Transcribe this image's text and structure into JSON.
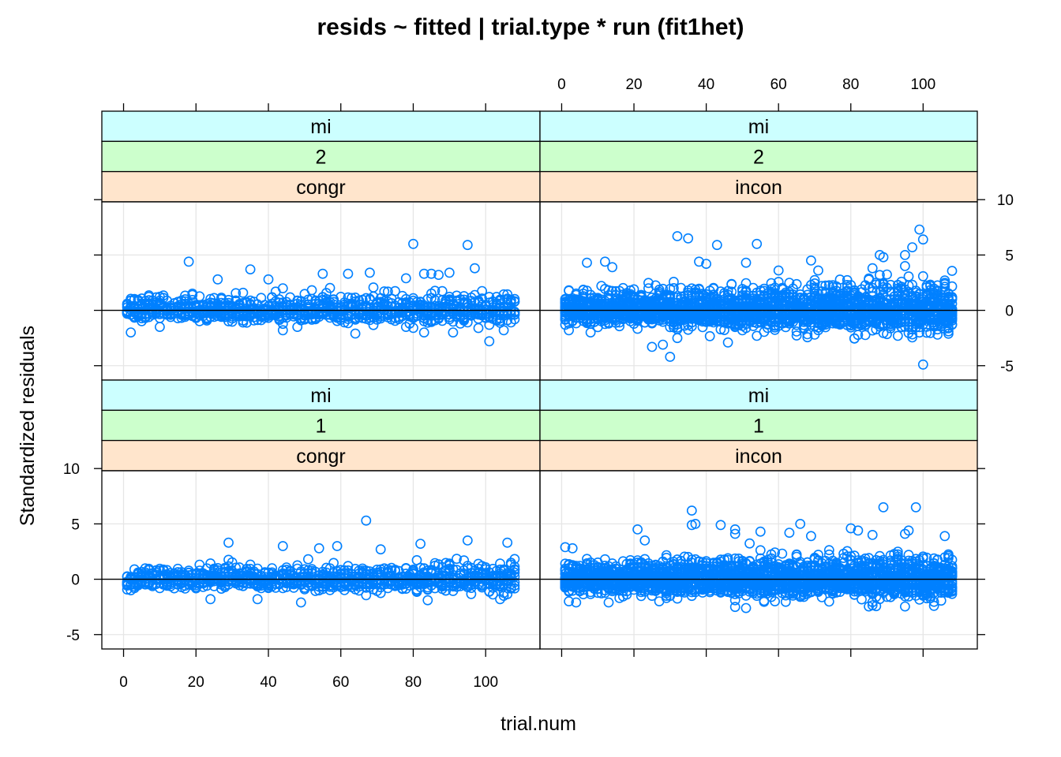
{
  "chart_data": {
    "type": "scatter",
    "title": "resids ~ fitted | trial.type * run (fit1het)",
    "xlabel": "trial.num",
    "ylabel": "Standardized residuals",
    "xlim": [
      -6,
      115
    ],
    "ylim": [
      -6.3,
      9.8
    ],
    "x_ticks": [
      0,
      20,
      40,
      60,
      80,
      100
    ],
    "y_ticks": [
      -5,
      0,
      5,
      10
    ],
    "grid": true,
    "reference_line_y": 0,
    "colors": {
      "points": "#0080ff",
      "strip_level1": "#ccffff",
      "strip_level2": "#ccffcc",
      "strip_level3": "#ffe5cc",
      "grid": "#e6e6e6"
    },
    "panels": [
      {
        "id": "mi-2-congr",
        "strips": [
          "mi",
          "2",
          "congr"
        ],
        "row": "top",
        "col": "left",
        "noise_sd": 0.55,
        "spread_growth": 0.5,
        "points_per_trial": 9,
        "seed": 11,
        "highlights": [
          [
            18,
            4.4
          ],
          [
            80,
            6
          ],
          [
            95,
            5.9
          ],
          [
            97,
            3.8
          ],
          [
            35,
            3.7
          ],
          [
            26,
            2.8
          ],
          [
            55,
            3.3
          ],
          [
            62,
            3.3
          ],
          [
            68,
            3.4
          ],
          [
            83,
            3.3
          ],
          [
            85,
            3.3
          ],
          [
            87,
            3.2
          ],
          [
            90,
            3.4
          ],
          [
            78,
            2.9
          ],
          [
            40,
            2.8
          ],
          [
            2,
            -2.0
          ],
          [
            10,
            -1.5
          ],
          [
            44,
            -1.8
          ],
          [
            64,
            -2.1
          ],
          [
            83,
            -2.0
          ],
          [
            91,
            -2.0
          ],
          [
            98,
            -1.6
          ],
          [
            105,
            -1.8
          ],
          [
            48,
            -1.5
          ],
          [
            78,
            -1.5
          ]
        ]
      },
      {
        "id": "mi-2-incon",
        "strips": [
          "mi",
          "2",
          "incon"
        ],
        "row": "top",
        "col": "right",
        "noise_sd": 0.7,
        "spread_growth": 0.8,
        "points_per_trial": 22,
        "seed": 23,
        "highlights": [
          [
            32,
            6.7
          ],
          [
            35,
            6.5
          ],
          [
            43,
            5.9
          ],
          [
            54,
            6.0
          ],
          [
            99,
            7.3
          ],
          [
            100,
            6.4
          ],
          [
            97,
            5.7
          ],
          [
            95,
            5.0
          ],
          [
            88,
            5.0
          ],
          [
            89,
            4.8
          ],
          [
            12,
            4.4
          ],
          [
            7,
            4.3
          ],
          [
            14,
            3.9
          ],
          [
            38,
            4.4
          ],
          [
            40,
            4.2
          ],
          [
            69,
            4.5
          ],
          [
            51,
            4.3
          ],
          [
            86,
            3.8
          ],
          [
            60,
            3.6
          ],
          [
            25,
            -3.3
          ],
          [
            28,
            -3.1
          ],
          [
            30,
            -4.2
          ],
          [
            32,
            -2.5
          ],
          [
            46,
            -2.9
          ],
          [
            100,
            -4.9
          ],
          [
            54,
            -2.3
          ],
          [
            93,
            -2.3
          ],
          [
            104,
            -2.2
          ],
          [
            70,
            -2.2
          ],
          [
            2,
            -1.8
          ],
          [
            8,
            -2.0
          ]
        ]
      },
      {
        "id": "mi-1-congr",
        "strips": [
          "mi",
          "1",
          "congr"
        ],
        "row": "bottom",
        "col": "left",
        "noise_sd": 0.5,
        "spread_growth": 0.5,
        "points_per_trial": 9,
        "seed": 37,
        "highlights": [
          [
            29,
            3.3
          ],
          [
            67,
            5.3
          ],
          [
            44,
            3.0
          ],
          [
            54,
            2.8
          ],
          [
            59,
            3.0
          ],
          [
            82,
            3.2
          ],
          [
            95,
            3.5
          ],
          [
            106,
            3.3
          ],
          [
            49,
            -2.1
          ],
          [
            37,
            -1.8
          ],
          [
            84,
            -1.9
          ],
          [
            104,
            -1.8
          ],
          [
            105,
            -1.5
          ],
          [
            2,
            -1.0
          ],
          [
            24,
            -1.8
          ],
          [
            71,
            2.7
          ]
        ]
      },
      {
        "id": "mi-1-incon",
        "strips": [
          "mi",
          "1",
          "incon"
        ],
        "row": "bottom",
        "col": "right",
        "noise_sd": 0.7,
        "spread_growth": 0.5,
        "points_per_trial": 24,
        "seed": 53,
        "highlights": [
          [
            1,
            2.9
          ],
          [
            3,
            2.8
          ],
          [
            21,
            4.5
          ],
          [
            23,
            3.5
          ],
          [
            36,
            6.2
          ],
          [
            36,
            4.9
          ],
          [
            37,
            5.0
          ],
          [
            44,
            4.9
          ],
          [
            48,
            4.5
          ],
          [
            48,
            4.1
          ],
          [
            55,
            4.3
          ],
          [
            63,
            4.2
          ],
          [
            66,
            5.0
          ],
          [
            69,
            3.9
          ],
          [
            80,
            4.6
          ],
          [
            82,
            4.4
          ],
          [
            86,
            4.0
          ],
          [
            89,
            6.5
          ],
          [
            98,
            6.5
          ],
          [
            96,
            4.4
          ],
          [
            95,
            4.1
          ],
          [
            106,
            3.9
          ],
          [
            48,
            -2.5
          ],
          [
            51,
            -2.6
          ],
          [
            103,
            -2.4
          ],
          [
            2,
            -2.0
          ],
          [
            4,
            -2.1
          ],
          [
            59,
            -2.0
          ],
          [
            13,
            -2.1
          ],
          [
            27,
            -2.0
          ]
        ]
      }
    ]
  }
}
